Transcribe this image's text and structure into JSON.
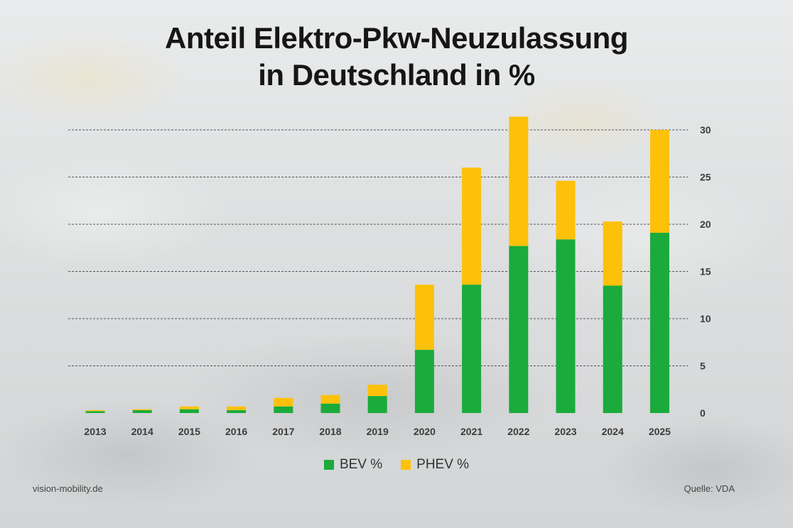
{
  "colors": {
    "bev": "#1aab3c",
    "phev": "#fdc10a",
    "grid": "#555555",
    "tick_text": "#3c3c3c"
  },
  "footer": {
    "left": "vision-mobility.de",
    "right": "Quelle: VDA"
  },
  "chart_data": {
    "type": "bar",
    "stacked": true,
    "title_lines": [
      "Anteil Elektro-Pkw-Neuzulassung",
      "in Deutschland in %"
    ],
    "categories": [
      "2013",
      "2014",
      "2015",
      "2016",
      "2017",
      "2018",
      "2019",
      "2020",
      "2021",
      "2022",
      "2023",
      "2024",
      "2025"
    ],
    "series": [
      {
        "name": "BEV %",
        "color": "#1aab3c",
        "values": [
          0.2,
          0.3,
          0.4,
          0.3,
          0.7,
          1.0,
          1.8,
          6.7,
          13.6,
          17.7,
          18.4,
          13.5,
          19.1
        ]
      },
      {
        "name": "PHEV %",
        "color": "#fdc10a",
        "values": [
          0.1,
          0.1,
          0.3,
          0.4,
          0.9,
          0.9,
          1.2,
          6.9,
          12.4,
          13.7,
          6.2,
          6.8,
          10.9
        ]
      }
    ],
    "ylim": [
      0,
      30
    ],
    "yticks": [
      0,
      5,
      10,
      15,
      20,
      25,
      30
    ],
    "y_axis_position": "right",
    "grid": true,
    "legend_position": "bottom"
  }
}
